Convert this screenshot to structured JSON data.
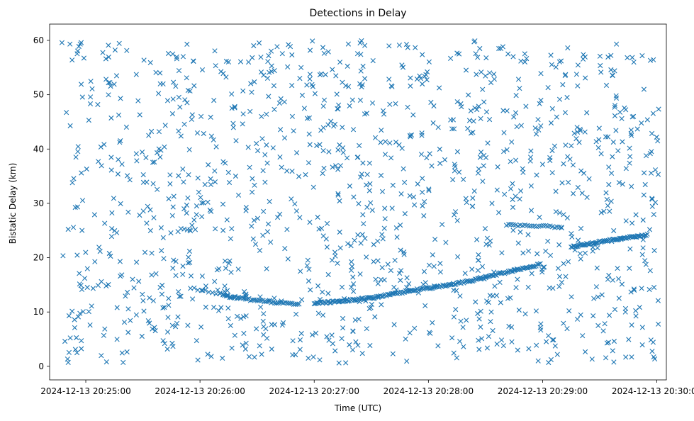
{
  "chart_data": {
    "type": "scatter",
    "title": "Detections in Delay",
    "xlabel": "Time (UTC)",
    "ylabel": "Bistatic Delay (km)",
    "marker": "x",
    "color": "#1f77b4",
    "xlim_seconds_after_20_25_00": [
      -19,
      305
    ],
    "ylim": [
      -2.5,
      63
    ],
    "x_ticks": [
      {
        "value": 0,
        "label": "2024-12-13 20:25:00"
      },
      {
        "value": 60,
        "label": "2024-12-13 20:26:00"
      },
      {
        "value": 120,
        "label": "2024-12-13 20:27:00"
      },
      {
        "value": 180,
        "label": "2024-12-13 20:28:00"
      },
      {
        "value": 240,
        "label": "2024-12-13 20:29:00"
      },
      {
        "value": 300,
        "label": "2024-12-13 20:30:00"
      }
    ],
    "y_ticks": [
      0,
      10,
      20,
      30,
      40,
      50,
      60
    ],
    "grid": false,
    "noise_detections": {
      "count": 1250,
      "x_range": [
        -13,
        301
      ],
      "y_range": [
        0.5,
        60
      ],
      "note": "uniformly scattered clutter detections"
    },
    "track_segments": [
      {
        "x": [
          55,
          60,
          65,
          70,
          75,
          80
        ],
        "y": [
          14.5,
          14.1,
          13.7,
          13.3,
          12.9,
          12.5
        ],
        "n": 14
      },
      {
        "x": [
          72,
          80,
          88,
          96,
          104,
          112
        ],
        "y": [
          13.0,
          12.6,
          12.2,
          11.9,
          11.6,
          11.5
        ],
        "n": 45
      },
      {
        "x": [
          120,
          135,
          150,
          160,
          170
        ],
        "y": [
          11.6,
          12.0,
          12.6,
          13.2,
          13.9
        ],
        "n": 80
      },
      {
        "x": [
          170,
          180,
          190,
          200,
          210
        ],
        "y": [
          13.9,
          14.4,
          15.0,
          15.6,
          16.3
        ],
        "n": 60
      },
      {
        "x": [
          210,
          220,
          230,
          238
        ],
        "y": [
          16.5,
          17.2,
          18.0,
          18.7
        ],
        "n": 40
      },
      {
        "x": [
          221,
          230,
          240,
          250
        ],
        "y": [
          26.0,
          25.9,
          25.8,
          25.5
        ],
        "n": 25
      },
      {
        "x": [
          255,
          265,
          275,
          285,
          295
        ],
        "y": [
          22.0,
          22.6,
          23.2,
          23.7,
          24.2
        ],
        "n": 70
      },
      {
        "x": [
          50,
          55
        ],
        "y": [
          25.2,
          25.0
        ],
        "n": 4
      },
      {
        "x": [
          247,
          253
        ],
        "y": [
          28.5,
          27.5
        ],
        "n": 4
      }
    ]
  }
}
